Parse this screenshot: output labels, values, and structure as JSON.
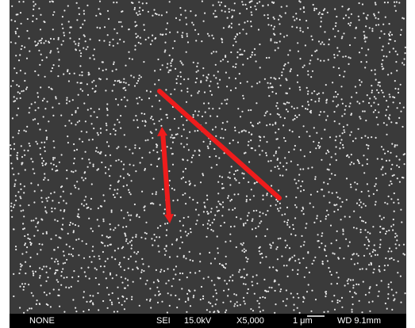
{
  "info_bar": {
    "label": "NONE",
    "detector": "SEI",
    "voltage": "15.0kV",
    "magnification": "X5,000",
    "scale": "1 μm",
    "working_distance": "WD 9.1mm"
  }
}
